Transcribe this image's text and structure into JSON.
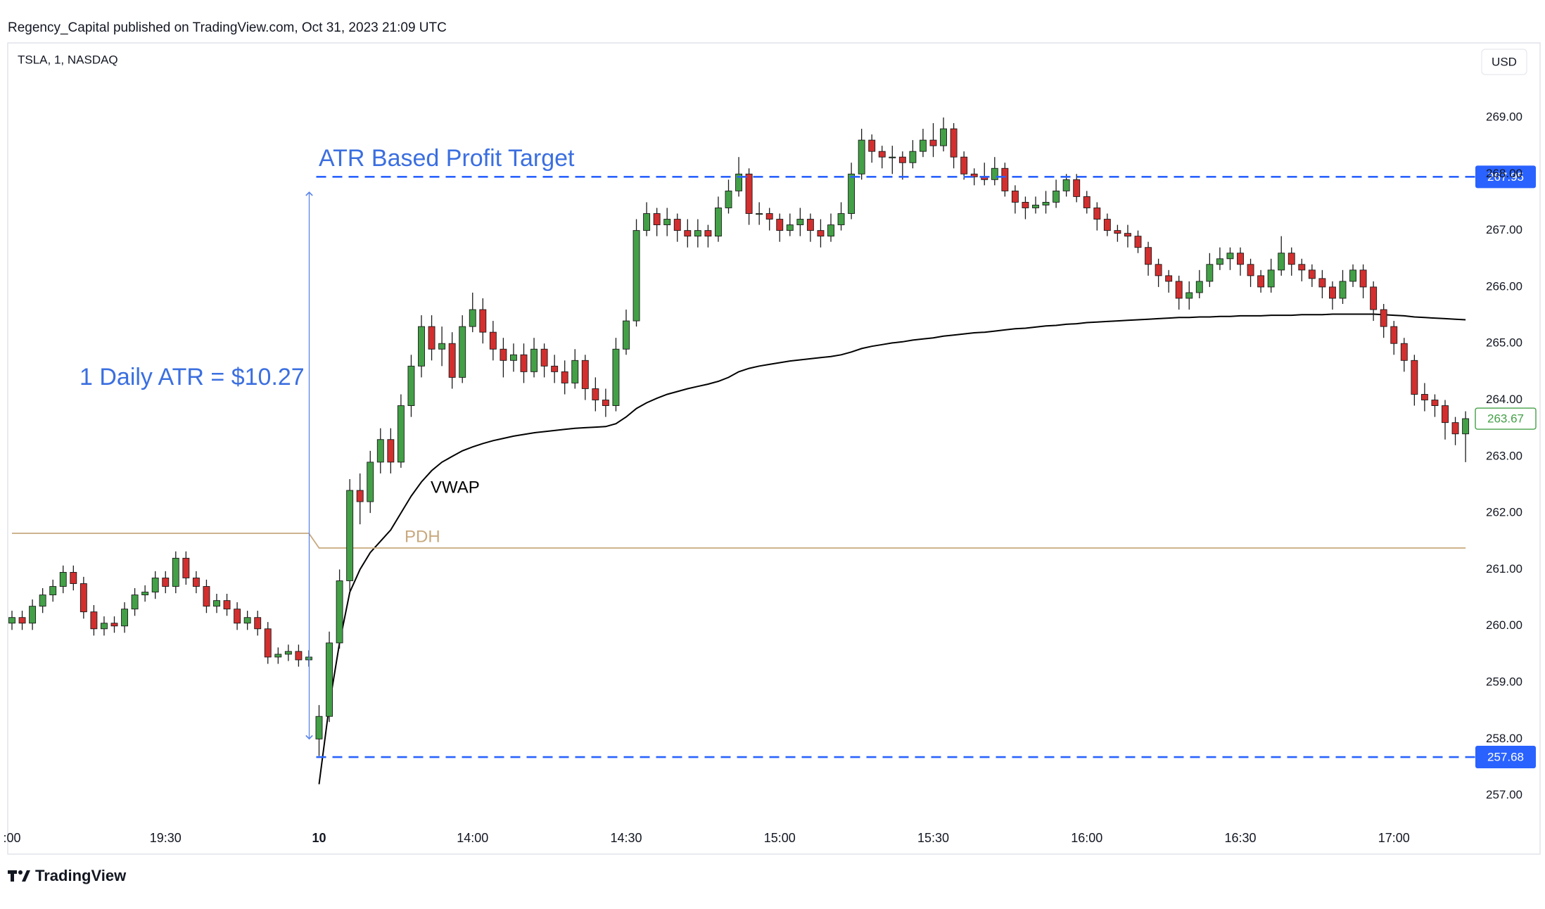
{
  "header": {
    "published": "Regency_Capital published on TradingView.com, Oct 31, 2023 21:09 UTC",
    "symbol": "TSLA, 1, NASDAQ",
    "currency": "USD"
  },
  "footer": {
    "brand": "TradingView"
  },
  "chart_data": {
    "type": "candlestick",
    "categories": [
      ":00",
      null,
      null,
      null,
      null,
      null,
      null,
      null,
      null,
      null,
      null,
      null,
      null,
      null,
      null,
      "19:30",
      null,
      null,
      null,
      null,
      null,
      null,
      null,
      null,
      null,
      null,
      null,
      null,
      null,
      null,
      "10",
      null,
      null,
      null,
      null,
      null,
      null,
      null,
      null,
      null,
      null,
      null,
      null,
      null,
      null,
      "14:00",
      null,
      null,
      null,
      null,
      null,
      null,
      null,
      null,
      null,
      null,
      null,
      null,
      null,
      null,
      "14:30",
      null,
      null,
      null,
      null,
      null,
      null,
      null,
      null,
      null,
      null,
      null,
      null,
      null,
      null,
      "15:00",
      null,
      null,
      null,
      null,
      null,
      null,
      null,
      null,
      null,
      null,
      null,
      null,
      null,
      null,
      "15:30",
      null,
      null,
      null,
      null,
      null,
      null,
      null,
      null,
      null,
      null,
      null,
      null,
      null,
      null,
      "16:00",
      null,
      null,
      null,
      null,
      null,
      null,
      null,
      null,
      null,
      null,
      null,
      null,
      null,
      null,
      "16:30",
      null,
      null,
      null,
      null,
      null,
      null,
      null,
      null,
      null,
      null,
      null,
      null,
      null,
      null,
      "17:00",
      null,
      null,
      null,
      null,
      null,
      null,
      null
    ],
    "open": [
      260.05,
      260.15,
      260.05,
      260.35,
      260.55,
      260.7,
      260.95,
      260.75,
      260.25,
      259.95,
      260.05,
      260.0,
      260.3,
      260.55,
      260.6,
      260.85,
      260.7,
      261.2,
      260.85,
      260.7,
      260.35,
      260.45,
      260.3,
      260.05,
      260.15,
      259.95,
      259.45,
      259.5,
      259.55,
      259.4,
      258.0,
      258.4,
      259.7,
      260.8,
      262.4,
      262.2,
      262.9,
      263.3,
      262.9,
      263.9,
      264.6,
      265.3,
      264.9,
      265.0,
      264.4,
      265.3,
      265.6,
      265.2,
      264.9,
      264.7,
      264.8,
      264.5,
      264.9,
      264.6,
      264.5,
      264.3,
      264.7,
      264.2,
      264.0,
      263.9,
      264.9,
      265.4,
      267.0,
      267.3,
      267.1,
      267.2,
      267.0,
      266.9,
      267.0,
      266.9,
      267.4,
      267.7,
      268.0,
      267.3,
      267.3,
      267.2,
      267.0,
      267.1,
      267.2,
      267.0,
      266.9,
      267.1,
      267.3,
      268.0,
      268.6,
      268.4,
      268.3,
      268.3,
      268.2,
      268.4,
      268.6,
      268.5,
      268.8,
      268.3,
      268.0,
      267.95,
      267.9,
      268.1,
      267.7,
      267.5,
      267.4,
      267.45,
      267.5,
      267.7,
      267.9,
      267.6,
      267.4,
      267.2,
      267.0,
      266.95,
      266.9,
      266.7,
      266.4,
      266.2,
      266.1,
      265.8,
      265.9,
      266.1,
      266.4,
      266.5,
      266.6,
      266.4,
      266.2,
      266.0,
      266.3,
      266.6,
      266.4,
      266.3,
      266.15,
      266.0,
      265.8,
      266.1,
      266.3,
      266.0,
      265.6,
      265.3,
      265.0,
      264.7,
      264.1,
      264.0,
      263.9,
      263.6,
      263.4
    ],
    "high": [
      260.27,
      260.27,
      260.47,
      260.67,
      260.82,
      261.07,
      261.07,
      260.87,
      260.37,
      260.17,
      260.17,
      260.42,
      260.67,
      260.72,
      260.97,
      260.97,
      261.32,
      261.32,
      260.97,
      260.82,
      260.57,
      260.57,
      260.42,
      260.27,
      260.27,
      260.07,
      259.62,
      259.67,
      259.67,
      259.57,
      258.6,
      259.9,
      261.0,
      262.6,
      262.7,
      263.1,
      263.5,
      263.5,
      264.1,
      264.8,
      265.5,
      265.5,
      265.3,
      265.2,
      265.5,
      265.9,
      265.8,
      265.4,
      265.1,
      265.0,
      265.0,
      265.1,
      265.0,
      264.8,
      264.7,
      264.9,
      264.8,
      264.4,
      264.2,
      265.1,
      265.6,
      267.2,
      267.5,
      267.4,
      267.4,
      267.3,
      267.2,
      267.2,
      267.1,
      267.6,
      267.9,
      268.3,
      268.1,
      267.5,
      267.4,
      267.3,
      267.3,
      267.4,
      267.3,
      267.2,
      267.3,
      267.5,
      268.2,
      268.8,
      268.7,
      268.5,
      268.5,
      268.4,
      268.6,
      268.8,
      268.9,
      269.0,
      268.9,
      268.4,
      268.1,
      268.2,
      268.3,
      268.2,
      267.8,
      267.6,
      267.6,
      267.7,
      267.9,
      268.0,
      268.0,
      267.7,
      267.5,
      267.3,
      267.1,
      267.1,
      267.0,
      266.8,
      266.5,
      266.3,
      266.2,
      266.1,
      266.3,
      266.6,
      266.7,
      266.7,
      266.7,
      266.5,
      266.3,
      266.5,
      266.9,
      266.7,
      266.5,
      266.4,
      266.3,
      266.1,
      266.3,
      266.4,
      266.4,
      266.1,
      265.7,
      265.4,
      265.1,
      264.8,
      264.3,
      264.1,
      264.0,
      263.7,
      263.8
    ],
    "low": [
      259.93,
      259.93,
      259.93,
      260.23,
      260.43,
      260.58,
      260.63,
      260.13,
      259.83,
      259.83,
      259.88,
      259.88,
      260.18,
      260.43,
      260.48,
      260.58,
      260.58,
      260.73,
      260.58,
      260.23,
      260.23,
      260.18,
      259.93,
      259.93,
      259.83,
      259.33,
      259.33,
      259.38,
      259.28,
      259.28,
      257.7,
      258.3,
      259.6,
      260.6,
      261.8,
      262.0,
      262.7,
      262.7,
      262.8,
      263.7,
      264.4,
      264.7,
      264.6,
      264.2,
      264.3,
      265.2,
      265.0,
      264.7,
      264.4,
      264.5,
      264.3,
      264.4,
      264.4,
      264.3,
      264.1,
      264.2,
      264.0,
      263.8,
      263.7,
      263.8,
      264.8,
      265.3,
      266.9,
      266.9,
      266.9,
      266.8,
      266.7,
      266.7,
      266.7,
      266.8,
      267.3,
      267.6,
      267.1,
      267.1,
      267.0,
      266.8,
      266.9,
      266.9,
      266.8,
      266.7,
      266.8,
      267.0,
      267.2,
      267.9,
      268.2,
      268.1,
      268.0,
      267.9,
      268.1,
      268.3,
      268.3,
      268.4,
      268.1,
      267.9,
      267.8,
      267.8,
      267.8,
      267.6,
      267.3,
      267.2,
      267.3,
      267.3,
      267.4,
      267.6,
      267.5,
      267.3,
      267.0,
      266.9,
      266.8,
      266.7,
      266.6,
      266.2,
      266.0,
      265.9,
      265.6,
      265.6,
      265.8,
      266.0,
      266.3,
      266.3,
      266.2,
      266.0,
      265.9,
      265.9,
      266.2,
      266.2,
      266.1,
      266.0,
      265.8,
      265.6,
      265.7,
      266.0,
      265.8,
      265.4,
      265.1,
      264.8,
      264.5,
      263.9,
      263.8,
      263.7,
      263.3,
      263.2,
      262.9
    ],
    "close": [
      260.15,
      260.05,
      260.35,
      260.55,
      260.7,
      260.95,
      260.75,
      260.25,
      259.95,
      260.05,
      260.0,
      260.3,
      260.55,
      260.6,
      260.85,
      260.7,
      261.2,
      260.85,
      260.7,
      260.35,
      260.45,
      260.3,
      260.05,
      260.15,
      259.95,
      259.45,
      259.5,
      259.55,
      259.4,
      259.45,
      258.4,
      259.7,
      260.8,
      262.4,
      262.2,
      262.9,
      263.3,
      262.9,
      263.9,
      264.6,
      265.3,
      264.9,
      265.0,
      264.4,
      265.3,
      265.6,
      265.2,
      264.9,
      264.7,
      264.8,
      264.5,
      264.9,
      264.6,
      264.5,
      264.3,
      264.7,
      264.2,
      264.0,
      263.9,
      264.9,
      265.4,
      267.0,
      267.3,
      267.1,
      267.2,
      267.0,
      266.9,
      267.0,
      266.9,
      267.4,
      267.7,
      268.0,
      267.3,
      267.3,
      267.2,
      267.0,
      267.1,
      267.2,
      267.0,
      266.9,
      267.1,
      267.3,
      268.0,
      268.6,
      268.4,
      268.3,
      268.3,
      268.2,
      268.4,
      268.6,
      268.5,
      268.8,
      268.3,
      268.0,
      267.95,
      267.9,
      268.1,
      267.7,
      267.5,
      267.4,
      267.45,
      267.5,
      267.7,
      267.9,
      267.6,
      267.4,
      267.2,
      267.0,
      266.95,
      266.9,
      266.7,
      266.4,
      266.2,
      266.1,
      265.8,
      265.9,
      266.1,
      266.4,
      266.5,
      266.6,
      266.4,
      266.2,
      266.0,
      266.3,
      266.6,
      266.4,
      266.3,
      266.15,
      266.0,
      265.8,
      266.1,
      266.3,
      266.0,
      265.6,
      265.3,
      265.0,
      264.7,
      264.1,
      264.0,
      263.9,
      263.6,
      263.4,
      263.67
    ],
    "up_color": "#43a047",
    "down_color": "#d32f2f",
    "series": [
      {
        "name": "VWAP",
        "color": "#000000",
        "values": [
          null,
          null,
          null,
          null,
          null,
          null,
          null,
          null,
          null,
          null,
          null,
          null,
          null,
          null,
          null,
          null,
          null,
          null,
          null,
          null,
          null,
          null,
          null,
          null,
          null,
          null,
          null,
          null,
          null,
          null,
          257.2,
          258.6,
          259.7,
          260.6,
          261.0,
          261.3,
          261.5,
          261.7,
          262.0,
          262.3,
          262.55,
          262.75,
          262.9,
          263.0,
          263.1,
          263.17,
          263.23,
          263.28,
          263.32,
          263.36,
          263.39,
          263.42,
          263.44,
          263.46,
          263.48,
          263.5,
          263.51,
          263.52,
          263.53,
          263.58,
          263.7,
          263.85,
          263.95,
          264.03,
          264.1,
          264.15,
          264.2,
          264.24,
          264.28,
          264.33,
          264.4,
          264.5,
          264.56,
          264.6,
          264.63,
          264.66,
          264.69,
          264.71,
          264.73,
          264.75,
          264.77,
          264.8,
          264.85,
          264.91,
          264.95,
          264.98,
          265.01,
          265.03,
          265.06,
          265.08,
          265.1,
          265.13,
          265.15,
          265.17,
          265.19,
          265.2,
          265.22,
          265.24,
          265.26,
          265.27,
          265.29,
          265.31,
          265.32,
          265.34,
          265.35,
          265.37,
          265.38,
          265.39,
          265.4,
          265.41,
          265.42,
          265.43,
          265.44,
          265.45,
          265.46,
          265.46,
          265.47,
          265.47,
          265.48,
          265.48,
          265.49,
          265.49,
          265.49,
          265.5,
          265.5,
          265.5,
          265.51,
          265.51,
          265.51,
          265.52,
          265.52,
          265.52,
          265.52,
          265.52,
          265.51,
          265.5,
          265.49,
          265.47,
          265.46,
          265.45,
          265.44,
          265.43,
          265.42
        ]
      },
      {
        "name": "PDH",
        "color": "#c8a97e",
        "values": [
          261.64,
          261.64,
          261.64,
          261.64,
          261.64,
          261.64,
          261.64,
          261.64,
          261.64,
          261.64,
          261.64,
          261.64,
          261.64,
          261.64,
          261.64,
          261.64,
          261.64,
          261.64,
          261.64,
          261.64,
          261.64,
          261.64,
          261.64,
          261.64,
          261.64,
          261.64,
          261.64,
          261.64,
          261.64,
          261.64,
          261.38,
          261.38,
          261.38,
          261.38,
          261.38,
          261.38,
          261.38,
          261.38,
          261.38,
          261.38,
          261.38,
          261.38,
          261.38,
          261.38,
          261.38,
          261.38,
          261.38,
          261.38,
          261.38,
          261.38,
          261.38,
          261.38,
          261.38,
          261.38,
          261.38,
          261.38,
          261.38,
          261.38,
          261.38,
          261.38,
          261.38,
          261.38,
          261.38,
          261.38,
          261.38,
          261.38,
          261.38,
          261.38,
          261.38,
          261.38,
          261.38,
          261.38,
          261.38,
          261.38,
          261.38,
          261.38,
          261.38,
          261.38,
          261.38,
          261.38,
          261.38,
          261.38,
          261.38,
          261.38,
          261.38,
          261.38,
          261.38,
          261.38,
          261.38,
          261.38,
          261.38,
          261.38,
          261.38,
          261.38,
          261.38,
          261.38,
          261.38,
          261.38,
          261.38,
          261.38,
          261.38,
          261.38,
          261.38,
          261.38,
          261.38,
          261.38,
          261.38,
          261.38,
          261.38,
          261.38,
          261.38,
          261.38,
          261.38,
          261.38,
          261.38,
          261.38,
          261.38,
          261.38,
          261.38,
          261.38,
          261.38,
          261.38,
          261.38,
          261.38,
          261.38,
          261.38,
          261.38,
          261.38,
          261.38,
          261.38,
          261.38,
          261.38,
          261.38,
          261.38,
          261.38,
          261.38,
          261.38,
          261.38,
          261.38,
          261.38,
          261.38,
          261.38,
          261.38
        ]
      }
    ],
    "levels": [
      {
        "value": 267.95,
        "color": "#2962ff"
      },
      {
        "value": 257.68,
        "color": "#2962ff"
      }
    ],
    "annotations": {
      "target": "ATR Based Profit Target",
      "atr": "1 Daily ATR = $10.27"
    },
    "ylim": [
      256.51,
      270.32
    ],
    "yticks": [
      {
        "value": 257,
        "label": "257.00"
      },
      {
        "value": 258,
        "label": "258.00"
      },
      {
        "value": 259,
        "label": "259.00"
      },
      {
        "value": 260,
        "label": "260.00"
      },
      {
        "value": 261,
        "label": "261.00"
      },
      {
        "value": 262,
        "label": "262.00"
      },
      {
        "value": 263,
        "label": "263.00"
      },
      {
        "value": 264,
        "label": "264.00"
      },
      {
        "value": 265,
        "label": "265.00"
      },
      {
        "value": 266,
        "label": "266.00"
      },
      {
        "value": 267,
        "label": "267.00"
      },
      {
        "value": 268,
        "label": "268.00"
      },
      {
        "value": 269,
        "label": "269.00"
      }
    ]
  }
}
